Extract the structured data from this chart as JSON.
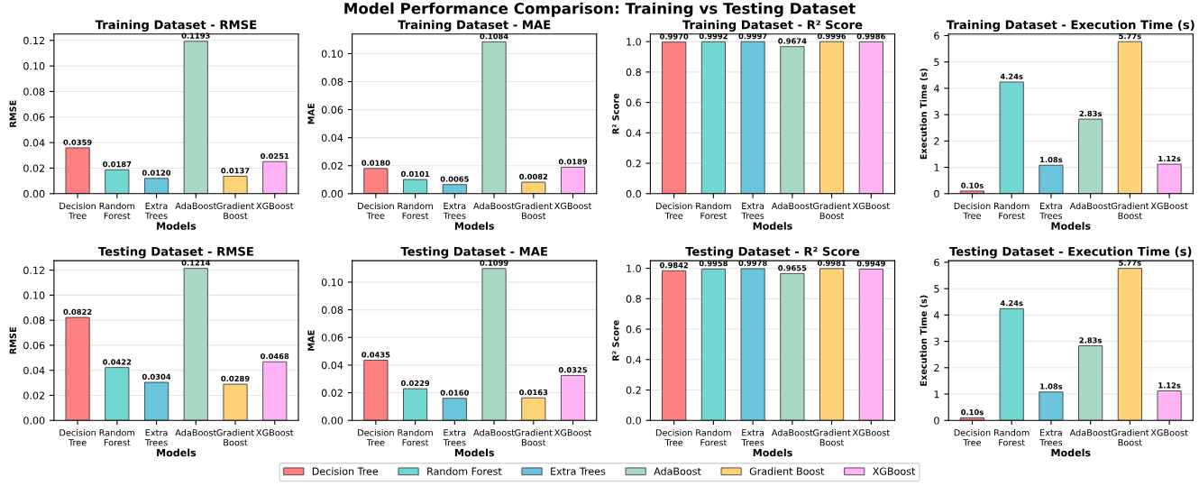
{
  "chart_data": [
    {
      "type": "bar",
      "title": "Training Dataset - RMSE",
      "xlabel": "Models",
      "ylabel": "RMSE",
      "annotations": [
        "Model Performance Comparison: Training vs Testing Dataset"
      ],
      "categories": [
        "Decision Tree",
        "Random Forest",
        "Extra Trees",
        "AdaBoost",
        "Gradient Boost",
        "XGBoost"
      ],
      "series": [
        {
          "color": "#ff8080",
          "values": [
            0.0359,
            null,
            null,
            null,
            null,
            null
          ],
          "value_labels": [
            "0.0359",
            null,
            null,
            null,
            null,
            null
          ]
        },
        {
          "color": "#72d7d0",
          "values": [
            null,
            0.0187,
            null,
            null,
            null,
            null
          ],
          "value_labels": [
            null,
            "0.0187",
            null,
            null,
            null,
            null
          ]
        },
        {
          "color": "#6ac5dc",
          "values": [
            null,
            null,
            0.012,
            null,
            null,
            null
          ],
          "value_labels": [
            null,
            null,
            "0.0120",
            null,
            null,
            null
          ]
        },
        {
          "color": "#a8d8c2",
          "values": [
            null,
            null,
            null,
            0.1193,
            null,
            null
          ],
          "value_labels": [
            null,
            null,
            null,
            "0.1193",
            null,
            null
          ]
        },
        {
          "color": "#fed277",
          "values": [
            null,
            null,
            null,
            null,
            0.0137,
            null
          ],
          "value_labels": [
            null,
            null,
            null,
            null,
            "0.0137",
            null
          ]
        },
        {
          "color": "#ffb2f6",
          "values": [
            null,
            null,
            null,
            null,
            null,
            0.0251
          ],
          "value_labels": [
            null,
            null,
            null,
            null,
            null,
            "0.0251"
          ]
        }
      ],
      "ylim": [
        0,
        0.125
      ],
      "yticks": [
        {
          "value": 0,
          "label": "0.00"
        },
        {
          "value": 0.02,
          "label": "0.02"
        },
        {
          "value": 0.04,
          "label": "0.04"
        },
        {
          "value": 0.06,
          "label": "0.06"
        },
        {
          "value": 0.08,
          "label": "0.08"
        },
        {
          "value": 0.1,
          "label": "0.10"
        },
        {
          "value": 0.12,
          "label": "0.12"
        }
      ],
      "grid": "y"
    },
    {
      "type": "bar",
      "title": "Training Dataset - MAE",
      "xlabel": "Models",
      "ylabel": "MAE",
      "categories": [
        "Decision Tree",
        "Random Forest",
        "Extra Trees",
        "AdaBoost",
        "Gradient Boost",
        "XGBoost"
      ],
      "series": [
        {
          "color": "#ff8080",
          "values": [
            0.018,
            null,
            null,
            null,
            null,
            null
          ],
          "value_labels": [
            "0.0180",
            null,
            null,
            null,
            null,
            null
          ]
        },
        {
          "color": "#72d7d0",
          "values": [
            null,
            0.0101,
            null,
            null,
            null,
            null
          ],
          "value_labels": [
            null,
            "0.0101",
            null,
            null,
            null,
            null
          ]
        },
        {
          "color": "#6ac5dc",
          "values": [
            null,
            null,
            0.0065,
            null,
            null,
            null
          ],
          "value_labels": [
            null,
            null,
            "0.0065",
            null,
            null,
            null
          ]
        },
        {
          "color": "#a8d8c2",
          "values": [
            null,
            null,
            null,
            0.1084,
            null,
            null
          ],
          "value_labels": [
            null,
            null,
            null,
            "0.1084",
            null,
            null
          ]
        },
        {
          "color": "#fed277",
          "values": [
            null,
            null,
            null,
            null,
            0.0082,
            null
          ],
          "value_labels": [
            null,
            null,
            null,
            null,
            "0.0082",
            null
          ]
        },
        {
          "color": "#ffb2f6",
          "values": [
            null,
            null,
            null,
            null,
            null,
            0.0189
          ],
          "value_labels": [
            null,
            null,
            null,
            null,
            null,
            "0.0189"
          ]
        }
      ],
      "ylim": [
        0,
        0.114
      ],
      "yticks": [
        {
          "value": 0,
          "label": "0.00"
        },
        {
          "value": 0.02,
          "label": "0.02"
        },
        {
          "value": 0.04,
          "label": "0.04"
        },
        {
          "value": 0.06,
          "label": "0.06"
        },
        {
          "value": 0.08,
          "label": "0.08"
        },
        {
          "value": 0.1,
          "label": "0.10"
        }
      ],
      "grid": "y"
    },
    {
      "type": "bar",
      "title": "Training Dataset - R² Score",
      "xlabel": "Models",
      "ylabel": "R² Score",
      "categories": [
        "Decision Tree",
        "Random Forest",
        "Extra Trees",
        "AdaBoost",
        "Gradient Boost",
        "XGBoost"
      ],
      "series": [
        {
          "color": "#ff8080",
          "values": [
            0.997,
            null,
            null,
            null,
            null,
            null
          ],
          "value_labels": [
            "0.9970",
            null,
            null,
            null,
            null,
            null
          ]
        },
        {
          "color": "#72d7d0",
          "values": [
            null,
            0.9992,
            null,
            null,
            null,
            null
          ],
          "value_labels": [
            null,
            "0.9992",
            null,
            null,
            null,
            null
          ]
        },
        {
          "color": "#6ac5dc",
          "values": [
            null,
            null,
            0.9997,
            null,
            null,
            null
          ],
          "value_labels": [
            null,
            null,
            "0.9997",
            null,
            null,
            null
          ]
        },
        {
          "color": "#a8d8c2",
          "values": [
            null,
            null,
            null,
            0.9674,
            null,
            null
          ],
          "value_labels": [
            null,
            null,
            null,
            "0.9674",
            null,
            null
          ]
        },
        {
          "color": "#fed277",
          "values": [
            null,
            null,
            null,
            null,
            0.9996,
            null
          ],
          "value_labels": [
            null,
            null,
            null,
            null,
            "0.9996",
            null
          ]
        },
        {
          "color": "#ffb2f6",
          "values": [
            null,
            null,
            null,
            null,
            null,
            0.9986
          ],
          "value_labels": [
            null,
            null,
            null,
            null,
            null,
            "0.9986"
          ]
        }
      ],
      "ylim": [
        0,
        1.05
      ],
      "yticks": [
        {
          "value": 0,
          "label": "0.0"
        },
        0.2,
        0.4,
        0.6,
        0.8,
        {
          "value": 1,
          "label": "1.0"
        }
      ],
      "grid": "y"
    },
    {
      "type": "bar",
      "title": "Training Dataset - Execution Time (s)",
      "xlabel": "Models",
      "ylabel": "Execution Time (s)",
      "categories": [
        "Decision Tree",
        "Random Forest",
        "Extra Trees",
        "AdaBoost",
        "Gradient Boost",
        "XGBoost"
      ],
      "series": [
        {
          "color": "#ff8080",
          "values": [
            0.1,
            null,
            null,
            null,
            null,
            null
          ],
          "value_labels": [
            "0.10s",
            null,
            null,
            null,
            null,
            null
          ]
        },
        {
          "color": "#72d7d0",
          "values": [
            null,
            4.24,
            null,
            null,
            null,
            null
          ],
          "value_labels": [
            null,
            "4.24s",
            null,
            null,
            null,
            null
          ]
        },
        {
          "color": "#6ac5dc",
          "values": [
            null,
            null,
            1.08,
            null,
            null,
            null
          ],
          "value_labels": [
            null,
            null,
            "1.08s",
            null,
            null,
            null
          ]
        },
        {
          "color": "#a8d8c2",
          "values": [
            null,
            null,
            null,
            2.83,
            null,
            null
          ],
          "value_labels": [
            null,
            null,
            null,
            "2.83s",
            null,
            null
          ]
        },
        {
          "color": "#fed277",
          "values": [
            null,
            null,
            null,
            null,
            5.77,
            null
          ],
          "value_labels": [
            null,
            null,
            null,
            null,
            "5.77s",
            null
          ]
        },
        {
          "color": "#ffb2f6",
          "values": [
            null,
            null,
            null,
            null,
            null,
            1.12
          ],
          "value_labels": [
            null,
            null,
            null,
            null,
            null,
            "1.12s"
          ]
        }
      ],
      "ylim": [
        0,
        6.06
      ],
      "yticks": [
        0,
        1,
        2,
        3,
        4,
        5,
        6
      ],
      "grid": "y"
    },
    {
      "type": "bar",
      "title": "Testing Dataset - RMSE",
      "xlabel": "Models",
      "ylabel": "RMSE",
      "categories": [
        "Decision Tree",
        "Random Forest",
        "Extra Trees",
        "AdaBoost",
        "Gradient Boost",
        "XGBoost"
      ],
      "series": [
        {
          "color": "#ff8080",
          "values": [
            0.0822,
            null,
            null,
            null,
            null,
            null
          ],
          "value_labels": [
            "0.0822",
            null,
            null,
            null,
            null,
            null
          ]
        },
        {
          "color": "#72d7d0",
          "values": [
            null,
            0.0422,
            null,
            null,
            null,
            null
          ],
          "value_labels": [
            null,
            "0.0422",
            null,
            null,
            null,
            null
          ]
        },
        {
          "color": "#6ac5dc",
          "values": [
            null,
            null,
            0.0304,
            null,
            null,
            null
          ],
          "value_labels": [
            null,
            null,
            "0.0304",
            null,
            null,
            null
          ]
        },
        {
          "color": "#a8d8c2",
          "values": [
            null,
            null,
            null,
            0.1214,
            null,
            null
          ],
          "value_labels": [
            null,
            null,
            null,
            "0.1214",
            null,
            null
          ]
        },
        {
          "color": "#fed277",
          "values": [
            null,
            null,
            null,
            null,
            0.0289,
            null
          ],
          "value_labels": [
            null,
            null,
            null,
            null,
            "0.0289",
            null
          ]
        },
        {
          "color": "#ffb2f6",
          "values": [
            null,
            null,
            null,
            null,
            null,
            0.0468
          ],
          "value_labels": [
            null,
            null,
            null,
            null,
            null,
            "0.0468"
          ]
        }
      ],
      "ylim": [
        0,
        0.1275
      ],
      "yticks": [
        {
          "value": 0,
          "label": "0.00"
        },
        {
          "value": 0.02,
          "label": "0.02"
        },
        {
          "value": 0.04,
          "label": "0.04"
        },
        {
          "value": 0.06,
          "label": "0.06"
        },
        {
          "value": 0.08,
          "label": "0.08"
        },
        {
          "value": 0.1,
          "label": "0.10"
        },
        {
          "value": 0.12,
          "label": "0.12"
        }
      ],
      "grid": "y"
    },
    {
      "type": "bar",
      "title": "Testing Dataset - MAE",
      "xlabel": "Models",
      "ylabel": "MAE",
      "categories": [
        "Decision Tree",
        "Random Forest",
        "Extra Trees",
        "AdaBoost",
        "Gradient Boost",
        "XGBoost"
      ],
      "series": [
        {
          "color": "#ff8080",
          "values": [
            0.0435,
            null,
            null,
            null,
            null,
            null
          ],
          "value_labels": [
            "0.0435",
            null,
            null,
            null,
            null,
            null
          ]
        },
        {
          "color": "#72d7d0",
          "values": [
            null,
            0.0229,
            null,
            null,
            null,
            null
          ],
          "value_labels": [
            null,
            "0.0229",
            null,
            null,
            null,
            null
          ]
        },
        {
          "color": "#6ac5dc",
          "values": [
            null,
            null,
            0.016,
            null,
            null,
            null
          ],
          "value_labels": [
            null,
            null,
            "0.0160",
            null,
            null,
            null
          ]
        },
        {
          "color": "#a8d8c2",
          "values": [
            null,
            null,
            null,
            0.1099,
            null,
            null
          ],
          "value_labels": [
            null,
            null,
            null,
            "0.1099",
            null,
            null
          ]
        },
        {
          "color": "#fed277",
          "values": [
            null,
            null,
            null,
            null,
            0.0163,
            null
          ],
          "value_labels": [
            null,
            null,
            null,
            null,
            "0.0163",
            null
          ]
        },
        {
          "color": "#ffb2f6",
          "values": [
            null,
            null,
            null,
            null,
            null,
            0.0325
          ],
          "value_labels": [
            null,
            null,
            null,
            null,
            null,
            "0.0325"
          ]
        }
      ],
      "ylim": [
        0,
        0.1155
      ],
      "yticks": [
        {
          "value": 0,
          "label": "0.00"
        },
        {
          "value": 0.02,
          "label": "0.02"
        },
        {
          "value": 0.04,
          "label": "0.04"
        },
        {
          "value": 0.06,
          "label": "0.06"
        },
        {
          "value": 0.08,
          "label": "0.08"
        },
        {
          "value": 0.1,
          "label": "0.10"
        }
      ],
      "grid": "y"
    },
    {
      "type": "bar",
      "title": "Testing Dataset - R² Score",
      "xlabel": "Models",
      "ylabel": "R² Score",
      "categories": [
        "Decision Tree",
        "Random Forest",
        "Extra Trees",
        "AdaBoost",
        "Gradient Boost",
        "XGBoost"
      ],
      "series": [
        {
          "color": "#ff8080",
          "values": [
            0.9842,
            null,
            null,
            null,
            null,
            null
          ],
          "value_labels": [
            "0.9842",
            null,
            null,
            null,
            null,
            null
          ]
        },
        {
          "color": "#72d7d0",
          "values": [
            null,
            0.9958,
            null,
            null,
            null,
            null
          ],
          "value_labels": [
            null,
            "0.9958",
            null,
            null,
            null,
            null
          ]
        },
        {
          "color": "#6ac5dc",
          "values": [
            null,
            null,
            0.9978,
            null,
            null,
            null
          ],
          "value_labels": [
            null,
            null,
            "0.9978",
            null,
            null,
            null
          ]
        },
        {
          "color": "#a8d8c2",
          "values": [
            null,
            null,
            null,
            0.9655,
            null,
            null
          ],
          "value_labels": [
            null,
            null,
            null,
            "0.9655",
            null,
            null
          ]
        },
        {
          "color": "#fed277",
          "values": [
            null,
            null,
            null,
            null,
            0.9981,
            null
          ],
          "value_labels": [
            null,
            null,
            null,
            null,
            "0.9981",
            null
          ]
        },
        {
          "color": "#ffb2f6",
          "values": [
            null,
            null,
            null,
            null,
            null,
            0.9949
          ],
          "value_labels": [
            null,
            null,
            null,
            null,
            null,
            "0.9949"
          ]
        }
      ],
      "ylim": [
        0,
        1.05
      ],
      "yticks": [
        {
          "value": 0,
          "label": "0.0"
        },
        0.2,
        0.4,
        0.6,
        0.8,
        {
          "value": 1,
          "label": "1.0"
        }
      ],
      "grid": "y"
    },
    {
      "type": "bar",
      "title": "Testing Dataset - Execution Time (s)",
      "xlabel": "Models",
      "ylabel": "Execution Time (s)",
      "categories": [
        "Decision Tree",
        "Random Forest",
        "Extra Trees",
        "AdaBoost",
        "Gradient Boost",
        "XGBoost"
      ],
      "series": [
        {
          "name": "Decision Tree",
          "color": "#ff8080",
          "values": [
            0.1,
            null,
            null,
            null,
            null,
            null
          ],
          "value_labels": [
            "0.10s",
            null,
            null,
            null,
            null,
            null
          ]
        },
        {
          "name": "Random Forest",
          "color": "#72d7d0",
          "values": [
            null,
            4.24,
            null,
            null,
            null,
            null
          ],
          "value_labels": [
            null,
            "4.24s",
            null,
            null,
            null,
            null
          ]
        },
        {
          "name": "Extra Trees",
          "color": "#6ac5dc",
          "values": [
            null,
            null,
            1.08,
            null,
            null,
            null
          ],
          "value_labels": [
            null,
            null,
            "1.08s",
            null,
            null,
            null
          ]
        },
        {
          "name": "AdaBoost",
          "color": "#a8d8c2",
          "values": [
            null,
            null,
            null,
            2.83,
            null,
            null
          ],
          "value_labels": [
            null,
            null,
            null,
            "2.83s",
            null,
            null
          ]
        },
        {
          "name": "Gradient Boost",
          "color": "#fed277",
          "values": [
            null,
            null,
            null,
            null,
            5.77,
            null
          ],
          "value_labels": [
            null,
            null,
            null,
            null,
            "5.77s",
            null
          ]
        },
        {
          "name": "XGBoost",
          "color": "#ffb2f6",
          "values": [
            null,
            null,
            null,
            null,
            null,
            1.12
          ],
          "value_labels": [
            null,
            null,
            null,
            null,
            null,
            "1.12s"
          ]
        }
      ],
      "ylim": [
        0,
        6.06
      ],
      "yticks": [
        0,
        1,
        2,
        3,
        4,
        5,
        6
      ],
      "grid": "y",
      "legend": "bottom"
    }
  ]
}
